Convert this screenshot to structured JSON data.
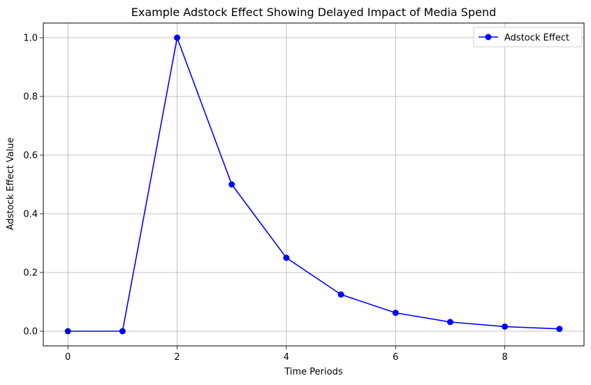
{
  "chart_data": {
    "type": "line",
    "title": "Example Adstock Effect Showing Delayed Impact of Media Spend",
    "xlabel": "Time Periods",
    "ylabel": "Adstock Effect Value",
    "xlim": [
      -0.45,
      9.45
    ],
    "ylim": [
      -0.05,
      1.05
    ],
    "xticks": [
      0,
      2,
      4,
      6,
      8
    ],
    "xtick_labels": [
      "0",
      "2",
      "4",
      "6",
      "8"
    ],
    "yticks": [
      0.0,
      0.2,
      0.4,
      0.6,
      0.8,
      1.0
    ],
    "ytick_labels": [
      "0.0",
      "0.2",
      "0.4",
      "0.6",
      "0.8",
      "1.0"
    ],
    "grid": true,
    "legend_position": "top-right",
    "series": [
      {
        "name": "Adstock Effect",
        "color": "#0000ff",
        "marker": "circle",
        "x": [
          0,
          1,
          2,
          3,
          4,
          5,
          6,
          7,
          8,
          9
        ],
        "y": [
          0.0,
          0.0,
          1.0,
          0.5,
          0.25,
          0.125,
          0.0625,
          0.03125,
          0.015625,
          0.0078125
        ]
      }
    ]
  }
}
